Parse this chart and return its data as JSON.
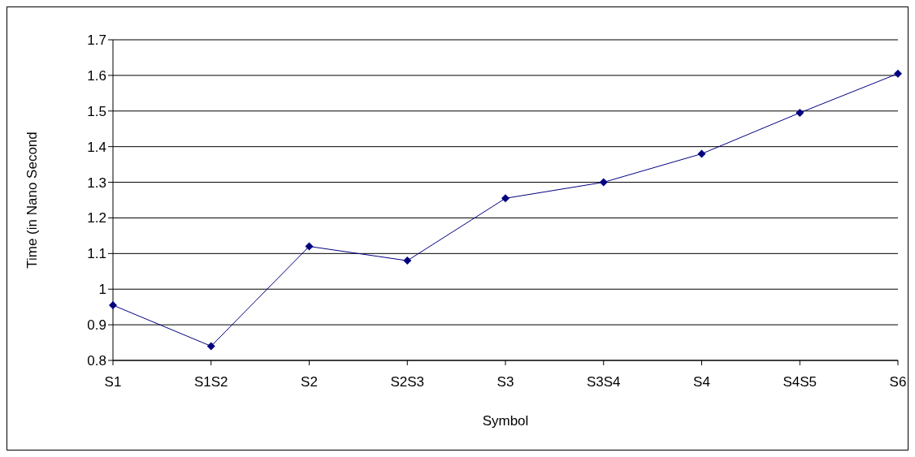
{
  "chart_data": {
    "type": "line",
    "xlabel": "Symbol",
    "ylabel": "Time (in Nano Second",
    "categories": [
      "S1",
      "S1S2",
      "S2",
      "S2S3",
      "S3",
      "S3S4",
      "S4",
      "S4S5",
      "S6"
    ],
    "series": [
      {
        "color": "#000080",
        "values": [
          0.955,
          0.84,
          1.12,
          1.08,
          1.255,
          1.3,
          1.38,
          1.495,
          1.605
        ]
      }
    ],
    "ylim": [
      0.8,
      1.7
    ],
    "yticks": [
      0.8,
      0.9,
      1,
      1.1,
      1.2,
      1.3,
      1.4,
      1.5,
      1.6,
      1.7
    ],
    "grid": "y",
    "marker": "diamond",
    "line_style": "solid"
  }
}
